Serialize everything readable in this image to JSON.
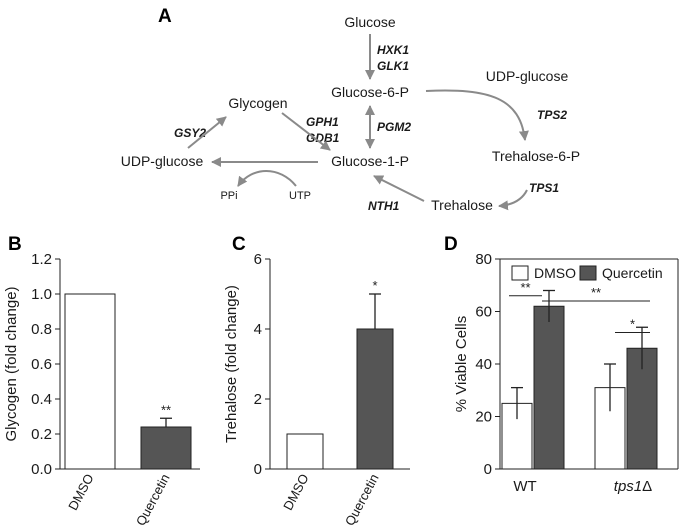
{
  "panels": {
    "A": "A",
    "B": "B",
    "C": "C",
    "D": "D"
  },
  "pathway": {
    "nodes": {
      "glucose": "Glucose",
      "g6p": "Glucose-6-P",
      "g1p": "Glucose-1-P",
      "glycogen": "Glycogen",
      "udpg_left": "UDP-glucose",
      "udpg_right": "UDP-glucose",
      "t6p": "Trehalose-6-P",
      "trehalose": "Trehalose",
      "ppi": "PPi",
      "utp": "UTP"
    },
    "enzymes": {
      "hxk1": "HXK1",
      "glk1": "GLK1",
      "pgm2": "PGM2",
      "gph1": "GPH1",
      "gdb1": "GDB1",
      "gsy2": "GSY2",
      "tps2": "TPS2",
      "tps1": "TPS1",
      "nth1": "NTH1"
    }
  },
  "colors": {
    "filled": "#555555",
    "open": "#ffffff",
    "arrow": "#8a8a8a"
  },
  "chart_data": [
    {
      "type": "bar",
      "panel": "B",
      "categories": [
        "DMSO",
        "Quercetin"
      ],
      "values": [
        1.0,
        0.24
      ],
      "errors": [
        0,
        0.05
      ],
      "fills": [
        "open",
        "filled"
      ],
      "significance": [
        "",
        "**"
      ],
      "ylabel": "Glycogen (fold change)",
      "ylim": [
        0,
        1.2
      ],
      "yticks": [
        "0.0",
        "0.2",
        "0.4",
        "0.6",
        "0.8",
        "1.0",
        "1.2"
      ]
    },
    {
      "type": "bar",
      "panel": "C",
      "categories": [
        "DMSO",
        "Quercetin"
      ],
      "values": [
        1.0,
        4.0
      ],
      "errors": [
        0,
        1.0
      ],
      "fills": [
        "open",
        "filled"
      ],
      "significance": [
        "",
        "*"
      ],
      "ylabel": "Trehalose (fold change)",
      "ylim": [
        0,
        6
      ],
      "yticks": [
        "0",
        "2",
        "4",
        "6"
      ]
    },
    {
      "type": "bar",
      "panel": "D",
      "categories": [
        "WT",
        "tps1"
      ],
      "category_suffix": [
        "",
        "Δ"
      ],
      "series": [
        {
          "name": "DMSO",
          "values": [
            25,
            31
          ],
          "errors": [
            6,
            9
          ],
          "fill": "open"
        },
        {
          "name": "Quercetin",
          "values": [
            62,
            46
          ],
          "errors": [
            6,
            8
          ],
          "fill": "filled"
        }
      ],
      "ylabel": "% Viable Cells",
      "ylim": [
        0,
        80
      ],
      "yticks": [
        "0",
        "20",
        "40",
        "60",
        "80"
      ],
      "legend": "top",
      "comparisons": [
        {
          "label": "**",
          "value": 66
        },
        {
          "label": "**",
          "value": 64
        },
        {
          "label": "*",
          "value": 52
        }
      ]
    }
  ]
}
